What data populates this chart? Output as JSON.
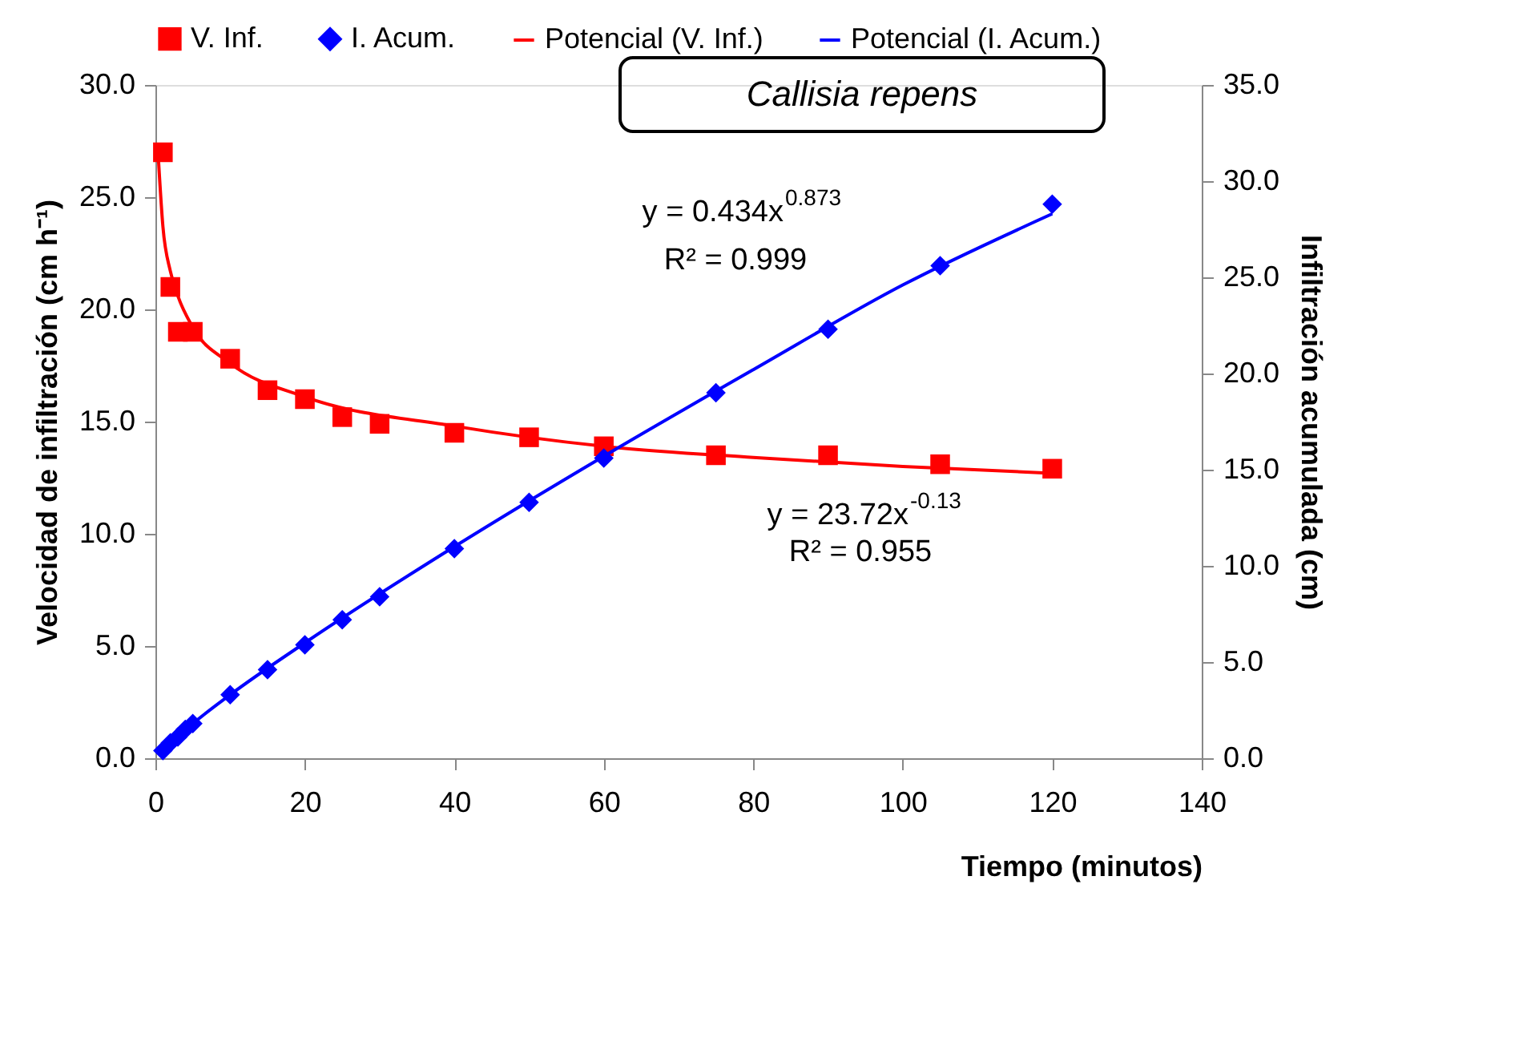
{
  "chart_data": {
    "type": "scatter",
    "title": "Callisia repens",
    "xlabel": "Tiempo (minutos)",
    "ylabel": "Velocidad de infiltración (cm h⁻¹)",
    "y2label": "Infiltración acumulada (cm)",
    "xlim": [
      0,
      140
    ],
    "xticks": [
      0,
      20,
      40,
      60,
      80,
      100,
      120,
      140
    ],
    "ylim": [
      0,
      30
    ],
    "yticks": [
      {
        "value": 0,
        "label": "0.0"
      },
      {
        "value": 5,
        "label": "5.0"
      },
      {
        "value": 10,
        "label": "10.0"
      },
      {
        "value": 15,
        "label": "15.0"
      },
      {
        "value": 20,
        "label": "20.0"
      },
      {
        "value": 25,
        "label": "25.0"
      },
      {
        "value": 30,
        "label": "30.0"
      }
    ],
    "y2lim": [
      0,
      35
    ],
    "y2ticks": [
      {
        "value": 0,
        "label": "0.0"
      },
      {
        "value": 5,
        "label": "5.0"
      },
      {
        "value": 10,
        "label": "10.0"
      },
      {
        "value": 15,
        "label": "15.0"
      },
      {
        "value": 20,
        "label": "20.0"
      },
      {
        "value": 25,
        "label": "25.0"
      },
      {
        "value": 30,
        "label": "30.0"
      },
      {
        "value": 35,
        "label": "35.0"
      }
    ],
    "grid": false,
    "legend": "top",
    "series": [
      {
        "name": "V. Inf.",
        "marker": "square",
        "color": "#ff0000",
        "axis": "y",
        "x": [
          1,
          2,
          3,
          4,
          5,
          10,
          15,
          20,
          25,
          30,
          40,
          50,
          60,
          75,
          90,
          105,
          120
        ],
        "values": [
          27.0,
          21.0,
          19.0,
          null,
          19.0,
          17.8,
          16.4,
          16.0,
          15.2,
          14.9,
          14.5,
          14.3,
          13.9,
          13.5,
          13.5,
          13.1,
          12.9
        ]
      },
      {
        "name": "I. Acum.",
        "marker": "diamond",
        "color": "#0000ff",
        "axis": "y2",
        "x": [
          1,
          2,
          3,
          4,
          5,
          10,
          15,
          20,
          25,
          30,
          40,
          50,
          60,
          75,
          90,
          105,
          120
        ],
        "values": [
          0.4,
          0.8,
          1.1,
          1.5,
          1.8,
          3.3,
          4.6,
          5.9,
          7.2,
          8.4,
          10.9,
          13.3,
          15.6,
          19.0,
          22.3,
          25.6,
          28.8
        ]
      },
      {
        "name": "Potencial (V. Inf.)",
        "type": "line",
        "marker": "none",
        "color": "#ff0000",
        "axis": "y",
        "x": [
          0.4,
          1,
          2,
          3,
          5,
          10,
          20,
          40,
          60,
          80,
          100,
          120
        ],
        "values": [
          26.7,
          23.7,
          21.7,
          20.6,
          19.2,
          17.6,
          16.1,
          14.8,
          13.9,
          13.4,
          13.0,
          12.7
        ]
      },
      {
        "name": "Potencial (I. Acum.)",
        "type": "line",
        "marker": "none",
        "color": "#0000ff",
        "axis": "y2",
        "x": [
          1,
          5,
          10,
          20,
          40,
          60,
          80,
          100,
          120
        ],
        "values": [
          0.4,
          1.8,
          3.3,
          6.0,
          11.0,
          15.7,
          20.2,
          24.6,
          28.3
        ]
      }
    ],
    "annotations": [
      "y = 0.434x$^{0.873}$",
      "R² = 0.999",
      "y = 23.72x$^{-0.13}$",
      "R² = 0.955"
    ]
  }
}
